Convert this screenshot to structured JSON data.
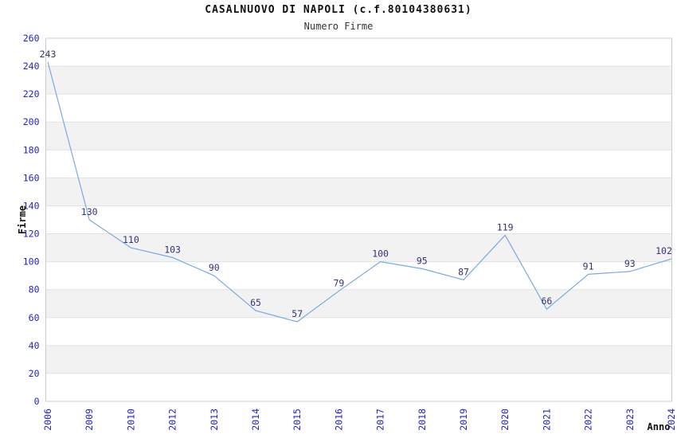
{
  "header": {
    "title": "CASALNUOVO DI NAPOLI (c.f.80104380631)",
    "subtitle": "Numero Firme"
  },
  "chart_data": {
    "type": "line",
    "title": "CASALNUOVO DI NAPOLI (c.f.80104380631)",
    "subtitle": "Numero Firme",
    "xlabel": "Anno",
    "ylabel": "Firme",
    "x": [
      "2006",
      "2009",
      "2010",
      "2012",
      "2013",
      "2014",
      "2015",
      "2016",
      "2017",
      "2018",
      "2019",
      "2020",
      "2021",
      "2022",
      "2023",
      "2024"
    ],
    "values": [
      243,
      130,
      110,
      103,
      90,
      65,
      57,
      79,
      100,
      95,
      87,
      119,
      66,
      91,
      93,
      102
    ],
    "ylim": [
      0,
      260
    ],
    "ytick_step": 20,
    "grid": "horizontal-bands",
    "legend": "none",
    "colors": {
      "line": "#7aa9e3",
      "point_label": "#333377",
      "tick_label": "#2222cc",
      "band": "#f2f2f2",
      "band_alt": "#ffffff",
      "grid": "#e2e2e2",
      "border": "#cccccc",
      "title": "#111111",
      "subtitle": "#333333",
      "axis_label": "#111111",
      "background": "#ffffff"
    }
  }
}
